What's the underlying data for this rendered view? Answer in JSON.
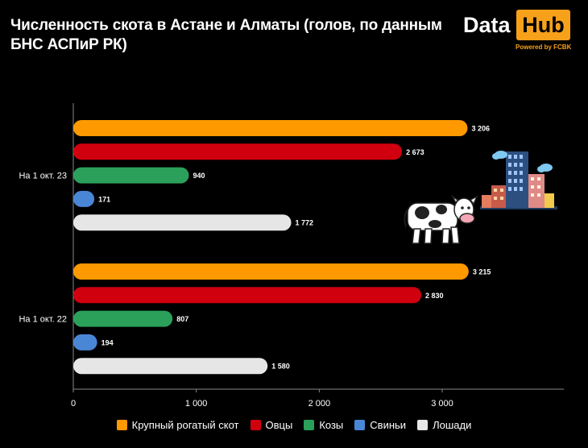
{
  "title": "Численность скота в Астане и Алматы (голов, по данным БНС АСПиР РК)",
  "logo": {
    "word1": "Data",
    "word2": "Hub",
    "tagline": "Powered by FCBK"
  },
  "colors": {
    "accent": "#f7a11a",
    "background": "#000000"
  },
  "chart_data": {
    "type": "bar",
    "orientation": "horizontal",
    "title": "Численность скота в Астане и Алматы (голов, по данным БНС АСПиР РК)",
    "xlabel": "",
    "ylabel": "",
    "xlim": [
      0,
      3900
    ],
    "xticks": [
      {
        "value": 0,
        "label": "0"
      },
      {
        "value": 1000,
        "label": "1 000"
      },
      {
        "value": 2000,
        "label": "2 000"
      },
      {
        "value": 3000,
        "label": "3 000"
      }
    ],
    "grid": false,
    "legend_position": "bottom",
    "categories": [
      "На 1 окт. 23",
      "На 1 окт. 22"
    ],
    "series": [
      {
        "name": "Крупный рогатый скот",
        "color": "#ff9900",
        "values": [
          3206,
          3215
        ],
        "labels": [
          "3 206",
          "3 215"
        ]
      },
      {
        "name": "Овцы",
        "color": "#d0000f",
        "values": [
          2673,
          2830
        ],
        "labels": [
          "2 673",
          "2 830"
        ]
      },
      {
        "name": "Козы",
        "color": "#2aa05a",
        "values": [
          940,
          807
        ],
        "labels": [
          "940",
          "807"
        ]
      },
      {
        "name": "Свиньи",
        "color": "#4a86d6",
        "values": [
          171,
          194
        ],
        "labels": [
          "171",
          "194"
        ]
      },
      {
        "name": "Лошади",
        "color": "#e6e6e6",
        "values": [
          1772,
          1580
        ],
        "labels": [
          "1 772",
          "1 580"
        ]
      }
    ]
  },
  "illustrations": {
    "left": "cow-icon",
    "right": "city-buildings-icon"
  }
}
